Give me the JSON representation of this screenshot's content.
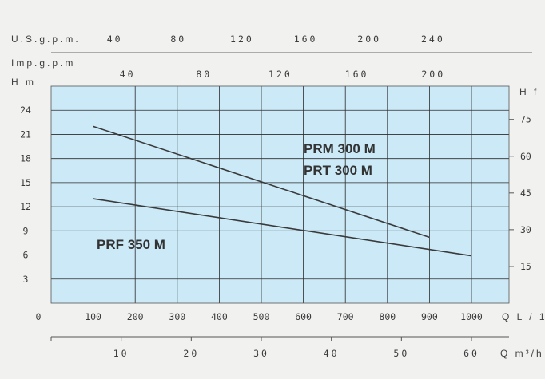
{
  "chart_data": {
    "type": "line",
    "grid": true,
    "x_primary": {
      "label": "Q L / 1'",
      "range": [
        0,
        1100
      ],
      "ticks": [
        0,
        100,
        200,
        300,
        400,
        500,
        600,
        700,
        800,
        900,
        1000
      ]
    },
    "x_m3h": {
      "label": "Q m³/h",
      "ticks": [
        10,
        20,
        30,
        40,
        50,
        60
      ]
    },
    "x_usgpm": {
      "label": "U.S.g.p.m.",
      "ticks": [
        40,
        80,
        120,
        160,
        200,
        240
      ]
    },
    "x_impgpm": {
      "label": "Imp.g.p.m",
      "ticks": [
        40,
        80,
        120,
        160,
        200
      ]
    },
    "y_left": {
      "label": "H m",
      "range": [
        0,
        27
      ],
      "ticks": [
        3,
        6,
        9,
        12,
        15,
        18,
        21,
        24
      ]
    },
    "y_right": {
      "label": "H f",
      "ticks": [
        15,
        30,
        45,
        60,
        75
      ]
    },
    "series": [
      {
        "name": "PRM 300 M / PRT 300 M",
        "label_lines": [
          "PRM 300 M",
          "PRT  300 M"
        ],
        "x": [
          100,
          900
        ],
        "y": [
          22,
          8.2
        ]
      },
      {
        "name": "PRF 350 M",
        "label_lines": [
          "PRF 350 M"
        ],
        "x": [
          100,
          1000
        ],
        "y": [
          13,
          5.9
        ]
      }
    ],
    "colors": {
      "plot_background": "#cbe9f7",
      "grid": "#2c2c2c",
      "line": "#3a3a3a"
    }
  }
}
